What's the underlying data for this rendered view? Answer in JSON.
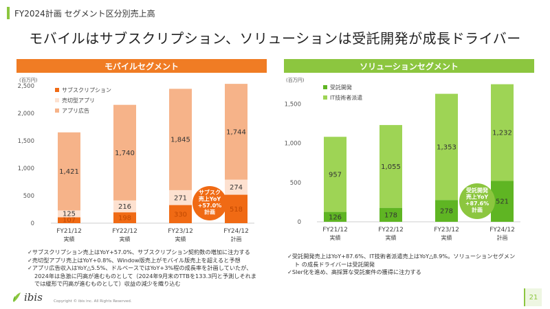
{
  "header": {
    "label": "FY2024計画 セグメント区分別売上高"
  },
  "title": "モバイルはサブスクリプション、ソリューションは受託開発が成長ドライバー",
  "colors": {
    "orange_dark": "#f06a14",
    "orange_mid": "#f6b389",
    "orange_light": "#fde1d0",
    "green_dark": "#5fb523",
    "green_light": "#9ed455"
  },
  "chart_data": [
    {
      "type": "bar",
      "stacked": true,
      "title": "モバイルセグメント",
      "ylabel": "(百万円)",
      "ylim": [
        0,
        2500
      ],
      "yticks": [
        0,
        500,
        1000,
        1500,
        2000,
        2500
      ],
      "ytick_labels": [
        "0",
        "500",
        "1,000",
        "1,500",
        "2,000",
        "2,500"
      ],
      "categories": [
        "FY21/12",
        "FY22/12",
        "FY23/12",
        "FY24/12"
      ],
      "category_sub": [
        "実績",
        "実績",
        "実績",
        "計画"
      ],
      "series": [
        {
          "name": "サブスクリプション",
          "values": [
            107,
            198,
            330,
            518
          ],
          "labels": [
            "107",
            "198",
            "330",
            "518"
          ]
        },
        {
          "name": "売切型アプリ",
          "values": [
            125,
            216,
            271,
            274
          ],
          "labels": [
            "125",
            "216",
            "271",
            "274"
          ]
        },
        {
          "name": "アプリ広告",
          "values": [
            1421,
            1740,
            1845,
            1744
          ],
          "labels": [
            "1,421",
            "1,740",
            "1,845",
            "1,744"
          ]
        }
      ],
      "callout": {
        "lines": [
          "サブスク",
          "売上YoY",
          "+57.0%",
          "計画"
        ]
      }
    },
    {
      "type": "bar",
      "stacked": true,
      "title": "ソリューションセグメント",
      "ylabel": "(百万円)",
      "ylim": [
        0,
        1750
      ],
      "yticks": [
        0,
        500,
        1000,
        1500
      ],
      "ytick_labels": [
        "0",
        "500",
        "1,000",
        "1,500"
      ],
      "categories": [
        "FY21/12",
        "FY22/12",
        "FY23/12",
        "FY24/12"
      ],
      "category_sub": [
        "実績",
        "実績",
        "実績",
        "計画"
      ],
      "series": [
        {
          "name": "受託開発",
          "values": [
            126,
            178,
            278,
            521
          ],
          "labels": [
            "126",
            "178",
            "278",
            "521"
          ]
        },
        {
          "name": "IT技術者派遣",
          "values": [
            957,
            1055,
            1353,
            1232
          ],
          "labels": [
            "957",
            "1,055",
            "1,353",
            "1,232"
          ]
        }
      ],
      "callout": {
        "lines": [
          "受託開発",
          "売上YoY",
          "+87.6%",
          "計画"
        ]
      }
    }
  ],
  "notes_left": [
    "✓サブスクリプション売上はYoY+57.0%、サブスクリプション契約数の増加に注力する",
    "✓売切型アプリ売上はYoY+0.8%、Window版売上がモバイル版売上を超えると予想",
    "✓アプリ広告収入はYoY△5.5%、ドルベースではYoY+3%程の成長率を計画していたが、",
    "2024年は急激に円高が進むものとして（2024年9月末のTTBを133.3円と予測しそれま",
    "では緩形で円高が進むものとして）収益の減少を織り込む"
  ],
  "notes_right": [
    "✓受託開発売上はYoY+87.6%、IT技術者派遣売上はYoY△8.9%。ソリューションセグメン",
    "ト の成長ドライバーは受託開発",
    "✓SIer化を進め、高採算な受託案件の獲得に注力する"
  ],
  "footer": {
    "logo": "ibis",
    "copyright": "Copyright © ibis inc. All Rights Reserved.",
    "page": "21"
  }
}
